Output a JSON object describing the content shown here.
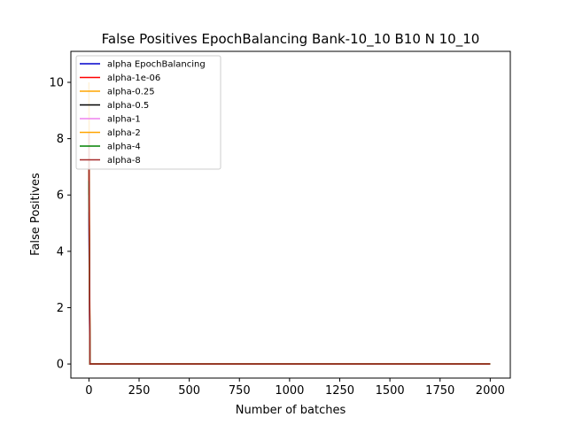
{
  "chart_data": {
    "type": "line",
    "title": "False Positives EpochBalancing Bank-10_10 B10 N 10_10",
    "xlabel": "Number of batches",
    "ylabel": "False Positives",
    "xlim": [
      -90,
      2100
    ],
    "ylim": [
      -0.5,
      11.1
    ],
    "xticks": [
      0,
      250,
      500,
      750,
      1000,
      1250,
      1500,
      1750,
      2000
    ],
    "yticks": [
      0,
      2,
      4,
      6,
      8,
      10
    ],
    "grid": false,
    "legend_position": "top-left",
    "series": [
      {
        "name": "alpha EpochBalancing",
        "color": "#0000cc",
        "x": [
          0,
          5,
          10,
          2000
        ],
        "y": [
          5.4,
          0,
          0,
          0
        ]
      },
      {
        "name": "alpha-1e-06",
        "color": "#ff0000",
        "x": [
          0,
          5,
          10,
          2000
        ],
        "y": [
          7.0,
          0,
          0,
          0
        ]
      },
      {
        "name": "alpha-0.25",
        "color": "#ffa500",
        "x": [
          0,
          5,
          10,
          2000
        ],
        "y": [
          10.0,
          0,
          0,
          0
        ]
      },
      {
        "name": "alpha-0.5",
        "color": "#000000",
        "x": [
          0,
          5,
          10,
          2000
        ],
        "y": [
          7.2,
          0,
          0,
          0
        ]
      },
      {
        "name": "alpha-1",
        "color": "#ee82ee",
        "x": [
          0,
          5,
          10,
          2000
        ],
        "y": [
          6.0,
          0,
          0,
          0
        ]
      },
      {
        "name": "alpha-2",
        "color": "#ffa500",
        "x": [
          0,
          5,
          10,
          2000
        ],
        "y": [
          8.0,
          0,
          0,
          0
        ]
      },
      {
        "name": "alpha-4",
        "color": "#008000",
        "x": [
          0,
          5,
          10,
          2000
        ],
        "y": [
          6.5,
          0,
          0,
          0
        ]
      },
      {
        "name": "alpha-8",
        "color": "#a52a2a",
        "x": [
          0,
          5,
          10,
          2000
        ],
        "y": [
          8.2,
          0,
          0,
          0
        ]
      }
    ]
  }
}
